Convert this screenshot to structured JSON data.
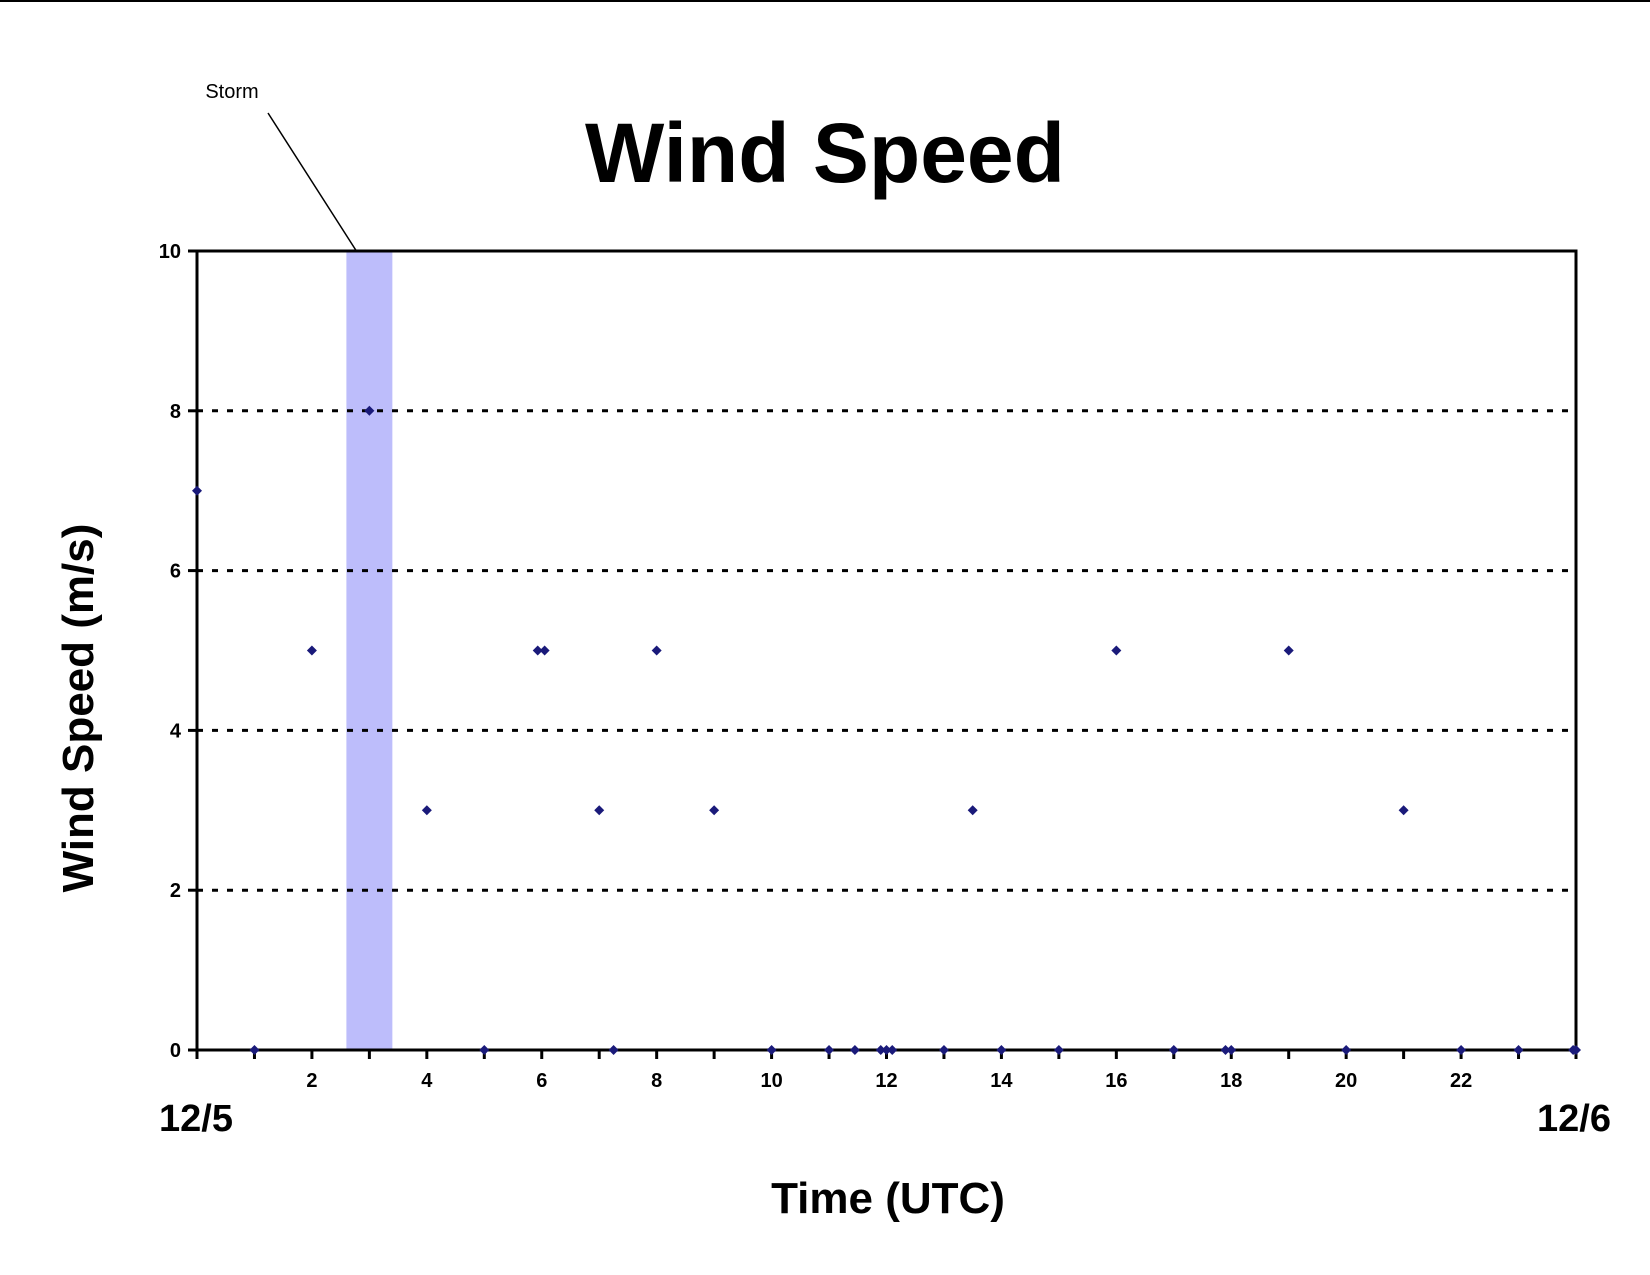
{
  "chart_data": {
    "type": "scatter",
    "title": "Wind Speed",
    "xlabel": "Time (UTC)",
    "ylabel": "Wind Speed (m/s)",
    "xlim": [
      0,
      24
    ],
    "ylim": [
      0,
      10
    ],
    "x_ticks": [
      2,
      4,
      6,
      8,
      10,
      12,
      14,
      16,
      18,
      20,
      22
    ],
    "y_ticks": [
      0,
      2,
      4,
      6,
      8,
      10
    ],
    "date_labels": {
      "start": "12/5",
      "end": "12/6"
    },
    "grid": "horizontal dotted",
    "marker_color": "#1a1a7a",
    "highlight": {
      "label": "Storm",
      "x_start": 2.6,
      "x_end": 3.4,
      "color": "#bdbdfb"
    },
    "series": [
      {
        "points": [
          {
            "x": 0,
            "y": 7
          },
          {
            "x": 1,
            "y": 0
          },
          {
            "x": 2,
            "y": 5
          },
          {
            "x": 3,
            "y": 8
          },
          {
            "x": 4,
            "y": 3
          },
          {
            "x": 5,
            "y": 0
          },
          {
            "x": 5.93,
            "y": 5
          },
          {
            "x": 6.05,
            "y": 5
          },
          {
            "x": 7,
            "y": 3
          },
          {
            "x": 7.25,
            "y": 0
          },
          {
            "x": 8,
            "y": 5
          },
          {
            "x": 9,
            "y": 3
          },
          {
            "x": 10,
            "y": 0
          },
          {
            "x": 11,
            "y": 0
          },
          {
            "x": 11.45,
            "y": 0
          },
          {
            "x": 11.9,
            "y": 0
          },
          {
            "x": 12,
            "y": 0
          },
          {
            "x": 12.1,
            "y": 0
          },
          {
            "x": 13,
            "y": 0
          },
          {
            "x": 13.5,
            "y": 3
          },
          {
            "x": 14,
            "y": 0
          },
          {
            "x": 15,
            "y": 0
          },
          {
            "x": 16,
            "y": 5
          },
          {
            "x": 17,
            "y": 0
          },
          {
            "x": 17.9,
            "y": 0
          },
          {
            "x": 18,
            "y": 0
          },
          {
            "x": 19,
            "y": 5
          },
          {
            "x": 20,
            "y": 0
          },
          {
            "x": 21,
            "y": 3
          },
          {
            "x": 22,
            "y": 0
          },
          {
            "x": 23,
            "y": 0
          },
          {
            "x": 23.95,
            "y": 0
          },
          {
            "x": 24,
            "y": 0
          }
        ]
      }
    ]
  }
}
